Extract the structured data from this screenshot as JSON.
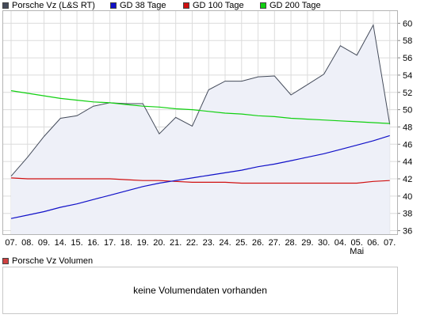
{
  "legend": [
    {
      "label": "Porsche Vz (L&S RT)",
      "color": "#444b5a"
    },
    {
      "label": "GD 38 Tage",
      "color": "#1010c8"
    },
    {
      "label": "GD 100 Tage",
      "color": "#d01010"
    },
    {
      "label": "GD 200 Tage",
      "color": "#10d010"
    }
  ],
  "volume": {
    "label": "Porsche Vz Volumen",
    "color": "#d04040",
    "message": "keine Volumendaten vorhanden"
  },
  "chart_data": {
    "type": "line",
    "categories": [
      "07.",
      "08.",
      "09.",
      "14.",
      "15.",
      "16.",
      "17.",
      "18.",
      "19.",
      "20.",
      "21.",
      "22.",
      "23.",
      "24.",
      "25.",
      "26.",
      "27.",
      "28.",
      "29.",
      "30.",
      "04.",
      "05.",
      "06.",
      "07."
    ],
    "sublabels": {
      "21": "Mai"
    },
    "ylim": [
      35.5,
      61.5
    ],
    "yticks": [
      36,
      38,
      40,
      42,
      44,
      46,
      48,
      50,
      52,
      54,
      56,
      58,
      60
    ],
    "grid": true,
    "legend_position": "top",
    "series": [
      {
        "name": "Porsche Vz (L&S RT)",
        "color": "#444b5a",
        "fill": "#eef0f8",
        "values": [
          42.3,
          44.5,
          46.9,
          49.0,
          49.3,
          50.4,
          50.8,
          50.7,
          50.7,
          47.2,
          49.1,
          48.1,
          52.3,
          53.3,
          53.3,
          53.8,
          53.9,
          51.7,
          52.9,
          54.1,
          57.4,
          56.3,
          59.8,
          48.3
        ]
      },
      {
        "name": "GD 38 Tage",
        "color": "#1010c8",
        "values": [
          37.4,
          37.8,
          38.2,
          38.7,
          39.1,
          39.6,
          40.1,
          40.6,
          41.1,
          41.5,
          41.8,
          42.1,
          42.4,
          42.7,
          43.0,
          43.4,
          43.7,
          44.1,
          44.5,
          44.9,
          45.4,
          45.9,
          46.4,
          47.0
        ]
      },
      {
        "name": "GD 100 Tage",
        "color": "#d01010",
        "values": [
          42.1,
          42.0,
          42.0,
          42.0,
          42.0,
          42.0,
          42.0,
          41.9,
          41.8,
          41.8,
          41.7,
          41.6,
          41.6,
          41.6,
          41.5,
          41.5,
          41.5,
          41.5,
          41.5,
          41.5,
          41.5,
          41.5,
          41.7,
          41.8
        ]
      },
      {
        "name": "GD 200 Tage",
        "color": "#10d010",
        "values": [
          52.2,
          51.9,
          51.6,
          51.3,
          51.1,
          50.9,
          50.8,
          50.6,
          50.4,
          50.3,
          50.1,
          50.0,
          49.8,
          49.6,
          49.5,
          49.3,
          49.2,
          49.0,
          48.9,
          48.8,
          48.7,
          48.6,
          48.5,
          48.4
        ]
      }
    ]
  }
}
